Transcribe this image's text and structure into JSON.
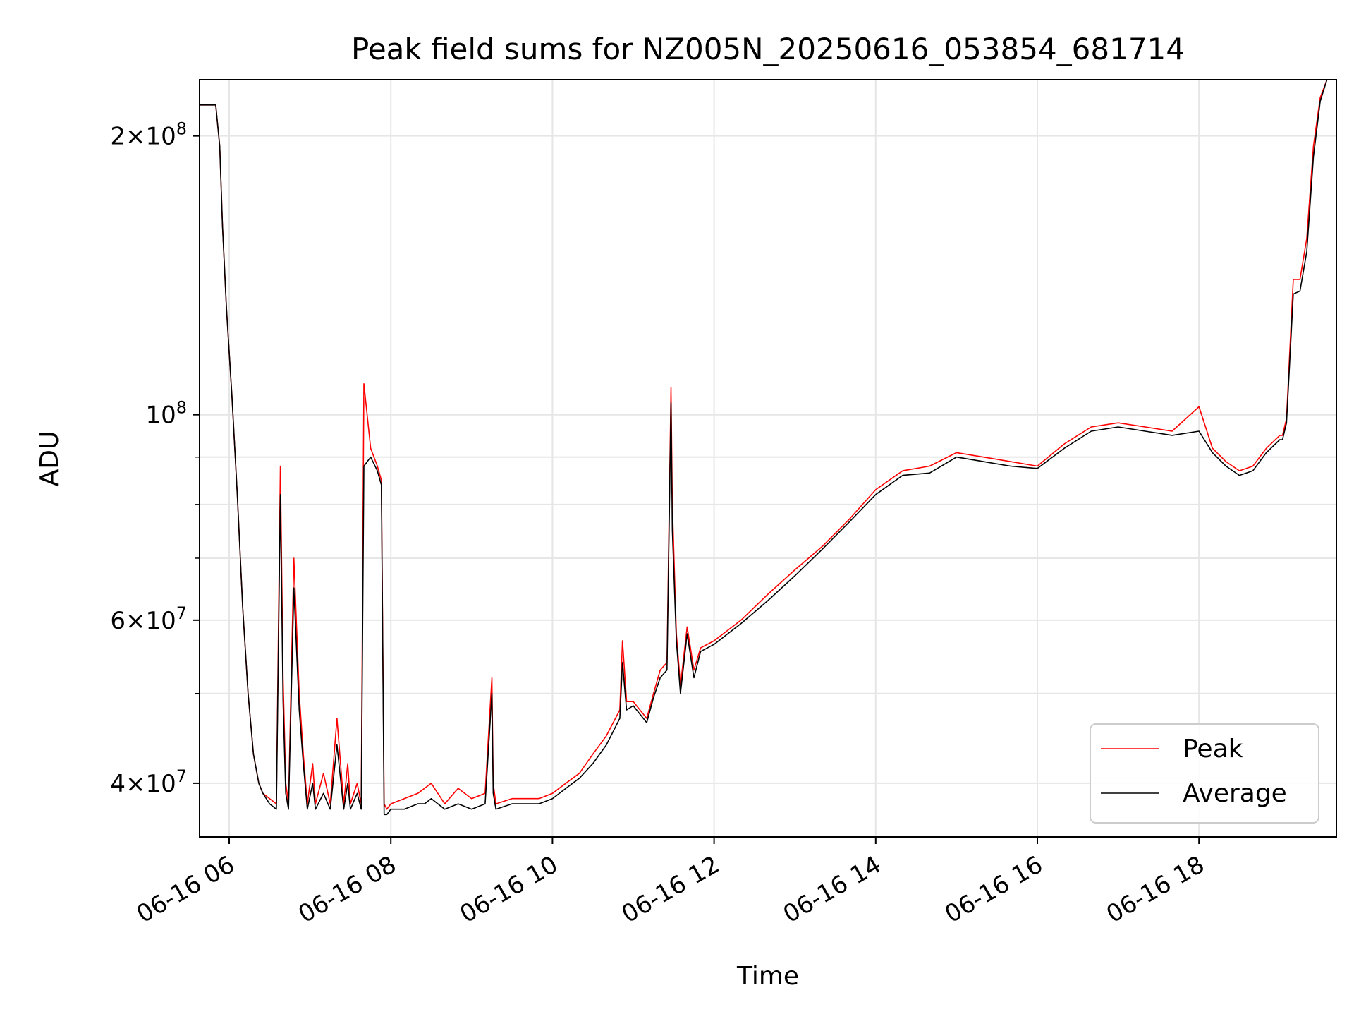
{
  "chart_data": {
    "type": "line",
    "title": "Peak field sums for NZ005N_20250616_053854_681714",
    "xlabel": "Time",
    "ylabel": "ADU",
    "y_scale": "log",
    "ylim": [
      35000000,
      230000000
    ],
    "xlim": [
      "2025-06-16 05:38",
      "2025-06-16 19:42"
    ],
    "grid": true,
    "legend_position": "lower-right",
    "x_ticks": [
      {
        "value": "2025-06-16 06:00",
        "label": "06-16 06"
      },
      {
        "value": "2025-06-16 08:00",
        "label": "06-16 08"
      },
      {
        "value": "2025-06-16 10:00",
        "label": "06-16 10"
      },
      {
        "value": "2025-06-16 12:00",
        "label": "06-16 12"
      },
      {
        "value": "2025-06-16 14:00",
        "label": "06-16 14"
      },
      {
        "value": "2025-06-16 16:00",
        "label": "06-16 16"
      },
      {
        "value": "2025-06-16 18:00",
        "label": "06-16 18"
      }
    ],
    "y_major_ticks": [
      {
        "value": 40000000,
        "mantissa": "4",
        "exponent": "7"
      },
      {
        "value": 60000000,
        "mantissa": "6",
        "exponent": "7"
      },
      {
        "value": 100000000,
        "mantissa": "",
        "exponent": "8"
      },
      {
        "value": 200000000,
        "mantissa": "2",
        "exponent": "8"
      }
    ],
    "y_minor_ticks": [
      50000000,
      70000000,
      80000000,
      90000000
    ],
    "series": [
      {
        "name": "Peak",
        "color": "#ff0000",
        "x": [
          "2025-06-16 05:38",
          "2025-06-16 05:50",
          "2025-06-16 05:53",
          "2025-06-16 05:55",
          "2025-06-16 05:58",
          "2025-06-16 06:02",
          "2025-06-16 06:06",
          "2025-06-16 06:10",
          "2025-06-16 06:14",
          "2025-06-16 06:18",
          "2025-06-16 06:22",
          "2025-06-16 06:25",
          "2025-06-16 06:30",
          "2025-06-16 06:35",
          "2025-06-16 06:38",
          "2025-06-16 06:40",
          "2025-06-16 06:42",
          "2025-06-16 06:44",
          "2025-06-16 06:48",
          "2025-06-16 06:52",
          "2025-06-16 06:55",
          "2025-06-16 06:58",
          "2025-06-16 07:02",
          "2025-06-16 07:04",
          "2025-06-16 07:10",
          "2025-06-16 07:15",
          "2025-06-16 07:20",
          "2025-06-16 07:25",
          "2025-06-16 07:28",
          "2025-06-16 07:30",
          "2025-06-16 07:35",
          "2025-06-16 07:38",
          "2025-06-16 07:40",
          "2025-06-16 07:45",
          "2025-06-16 07:50",
          "2025-06-16 07:53",
          "2025-06-16 07:55",
          "2025-06-16 07:57",
          "2025-06-16 08:00",
          "2025-06-16 08:10",
          "2025-06-16 08:20",
          "2025-06-16 08:25",
          "2025-06-16 08:30",
          "2025-06-16 08:40",
          "2025-06-16 08:50",
          "2025-06-16 09:00",
          "2025-06-16 09:10",
          "2025-06-16 09:15",
          "2025-06-16 09:16",
          "2025-06-16 09:18",
          "2025-06-16 09:30",
          "2025-06-16 09:40",
          "2025-06-16 09:50",
          "2025-06-16 10:00",
          "2025-06-16 10:10",
          "2025-06-16 10:20",
          "2025-06-16 10:30",
          "2025-06-16 10:40",
          "2025-06-16 10:50",
          "2025-06-16 10:52",
          "2025-06-16 10:55",
          "2025-06-16 11:00",
          "2025-06-16 11:10",
          "2025-06-16 11:15",
          "2025-06-16 11:20",
          "2025-06-16 11:25",
          "2025-06-16 11:28",
          "2025-06-16 11:29",
          "2025-06-16 11:32",
          "2025-06-16 11:35",
          "2025-06-16 11:40",
          "2025-06-16 11:45",
          "2025-06-16 11:50",
          "2025-06-16 12:00",
          "2025-06-16 12:20",
          "2025-06-16 12:40",
          "2025-06-16 13:00",
          "2025-06-16 13:20",
          "2025-06-16 13:40",
          "2025-06-16 14:00",
          "2025-06-16 14:20",
          "2025-06-16 14:40",
          "2025-06-16 15:00",
          "2025-06-16 15:20",
          "2025-06-16 15:40",
          "2025-06-16 16:00",
          "2025-06-16 16:20",
          "2025-06-16 16:40",
          "2025-06-16 17:00",
          "2025-06-16 17:20",
          "2025-06-16 17:40",
          "2025-06-16 18:00",
          "2025-06-16 18:10",
          "2025-06-16 18:20",
          "2025-06-16 18:30",
          "2025-06-16 18:40",
          "2025-06-16 18:50",
          "2025-06-16 19:00",
          "2025-06-16 19:02",
          "2025-06-16 19:05",
          "2025-06-16 19:10",
          "2025-06-16 19:15",
          "2025-06-16 19:20",
          "2025-06-16 19:25",
          "2025-06-16 19:30",
          "2025-06-16 19:35",
          "2025-06-16 19:42"
        ],
        "y": [
          216000000,
          216000000,
          195000000,
          160000000,
          130000000,
          105000000,
          82000000,
          62000000,
          50000000,
          43000000,
          40000000,
          39000000,
          38500000,
          38000000,
          88000000,
          52000000,
          40000000,
          38000000,
          70000000,
          50000000,
          43000000,
          38000000,
          42000000,
          38000000,
          41000000,
          38000000,
          47000000,
          38000000,
          42000000,
          38000000,
          40000000,
          38000000,
          108000000,
          92000000,
          88000000,
          85000000,
          38000000,
          37500000,
          38000000,
          38500000,
          39000000,
          39500000,
          40000000,
          38000000,
          39500000,
          38500000,
          39000000,
          52000000,
          40000000,
          38000000,
          38500000,
          38500000,
          38500000,
          39000000,
          40000000,
          41000000,
          43000000,
          45000000,
          48000000,
          57000000,
          49000000,
          49000000,
          47000000,
          50000000,
          53000000,
          54000000,
          107000000,
          80000000,
          58000000,
          51000000,
          59000000,
          53000000,
          56000000,
          57000000,
          60000000,
          64000000,
          68000000,
          72000000,
          77000000,
          83000000,
          87000000,
          88000000,
          91000000,
          90000000,
          89000000,
          88000000,
          93000000,
          97000000,
          98000000,
          97000000,
          96000000,
          102000000,
          92000000,
          89000000,
          87000000,
          88000000,
          92000000,
          95000000,
          95000000,
          99000000,
          140000000,
          140000000,
          155000000,
          195000000,
          220000000,
          230000000,
          230000000
        ]
      },
      {
        "name": "Average",
        "color": "#000000",
        "x": [
          "2025-06-16 05:38",
          "2025-06-16 05:50",
          "2025-06-16 05:53",
          "2025-06-16 05:55",
          "2025-06-16 05:58",
          "2025-06-16 06:02",
          "2025-06-16 06:06",
          "2025-06-16 06:10",
          "2025-06-16 06:14",
          "2025-06-16 06:18",
          "2025-06-16 06:22",
          "2025-06-16 06:25",
          "2025-06-16 06:30",
          "2025-06-16 06:35",
          "2025-06-16 06:38",
          "2025-06-16 06:40",
          "2025-06-16 06:42",
          "2025-06-16 06:44",
          "2025-06-16 06:48",
          "2025-06-16 06:52",
          "2025-06-16 06:55",
          "2025-06-16 06:58",
          "2025-06-16 07:02",
          "2025-06-16 07:04",
          "2025-06-16 07:10",
          "2025-06-16 07:15",
          "2025-06-16 07:20",
          "2025-06-16 07:25",
          "2025-06-16 07:28",
          "2025-06-16 07:30",
          "2025-06-16 07:35",
          "2025-06-16 07:38",
          "2025-06-16 07:40",
          "2025-06-16 07:45",
          "2025-06-16 07:50",
          "2025-06-16 07:53",
          "2025-06-16 07:55",
          "2025-06-16 07:57",
          "2025-06-16 08:00",
          "2025-06-16 08:10",
          "2025-06-16 08:20",
          "2025-06-16 08:25",
          "2025-06-16 08:30",
          "2025-06-16 08:40",
          "2025-06-16 08:50",
          "2025-06-16 09:00",
          "2025-06-16 09:10",
          "2025-06-16 09:15",
          "2025-06-16 09:16",
          "2025-06-16 09:18",
          "2025-06-16 09:30",
          "2025-06-16 09:40",
          "2025-06-16 09:50",
          "2025-06-16 10:00",
          "2025-06-16 10:10",
          "2025-06-16 10:20",
          "2025-06-16 10:30",
          "2025-06-16 10:40",
          "2025-06-16 10:50",
          "2025-06-16 10:52",
          "2025-06-16 10:55",
          "2025-06-16 11:00",
          "2025-06-16 11:10",
          "2025-06-16 11:15",
          "2025-06-16 11:20",
          "2025-06-16 11:25",
          "2025-06-16 11:28",
          "2025-06-16 11:29",
          "2025-06-16 11:32",
          "2025-06-16 11:35",
          "2025-06-16 11:40",
          "2025-06-16 11:45",
          "2025-06-16 11:50",
          "2025-06-16 12:00",
          "2025-06-16 12:20",
          "2025-06-16 12:40",
          "2025-06-16 13:00",
          "2025-06-16 13:20",
          "2025-06-16 13:40",
          "2025-06-16 14:00",
          "2025-06-16 14:20",
          "2025-06-16 14:40",
          "2025-06-16 15:00",
          "2025-06-16 15:20",
          "2025-06-16 15:40",
          "2025-06-16 16:00",
          "2025-06-16 16:20",
          "2025-06-16 16:40",
          "2025-06-16 17:00",
          "2025-06-16 17:20",
          "2025-06-16 17:40",
          "2025-06-16 18:00",
          "2025-06-16 18:10",
          "2025-06-16 18:20",
          "2025-06-16 18:30",
          "2025-06-16 18:40",
          "2025-06-16 18:50",
          "2025-06-16 19:00",
          "2025-06-16 19:02",
          "2025-06-16 19:05",
          "2025-06-16 19:10",
          "2025-06-16 19:15",
          "2025-06-16 19:20",
          "2025-06-16 19:25",
          "2025-06-16 19:30",
          "2025-06-16 19:35",
          "2025-06-16 19:42"
        ],
        "y": [
          216000000,
          216000000,
          195000000,
          160000000,
          130000000,
          105000000,
          82000000,
          62000000,
          50000000,
          43000000,
          40000000,
          39000000,
          38000000,
          37500000,
          82000000,
          49000000,
          39000000,
          37500000,
          65000000,
          48000000,
          42000000,
          37500000,
          40000000,
          37500000,
          39000000,
          37500000,
          44000000,
          37500000,
          40000000,
          37500000,
          39000000,
          37500000,
          88000000,
          90000000,
          87000000,
          84000000,
          37000000,
          37000000,
          37500000,
          37500000,
          38000000,
          38000000,
          38500000,
          37500000,
          38000000,
          37500000,
          38000000,
          50000000,
          39000000,
          37500000,
          38000000,
          38000000,
          38000000,
          38500000,
          39500000,
          40500000,
          42000000,
          44000000,
          47000000,
          54000000,
          48000000,
          48500000,
          46500000,
          49500000,
          52000000,
          53000000,
          103000000,
          75000000,
          57000000,
          50000000,
          58000000,
          52000000,
          55500000,
          56500000,
          59500000,
          63000000,
          67000000,
          71500000,
          76500000,
          82000000,
          86000000,
          86500000,
          90000000,
          89000000,
          88000000,
          87500000,
          92000000,
          96000000,
          97000000,
          96000000,
          95000000,
          96000000,
          91000000,
          88000000,
          86000000,
          87000000,
          91000000,
          94000000,
          94000000,
          98000000,
          135000000,
          136000000,
          150000000,
          190000000,
          218000000,
          230000000,
          230000000
        ]
      }
    ]
  }
}
